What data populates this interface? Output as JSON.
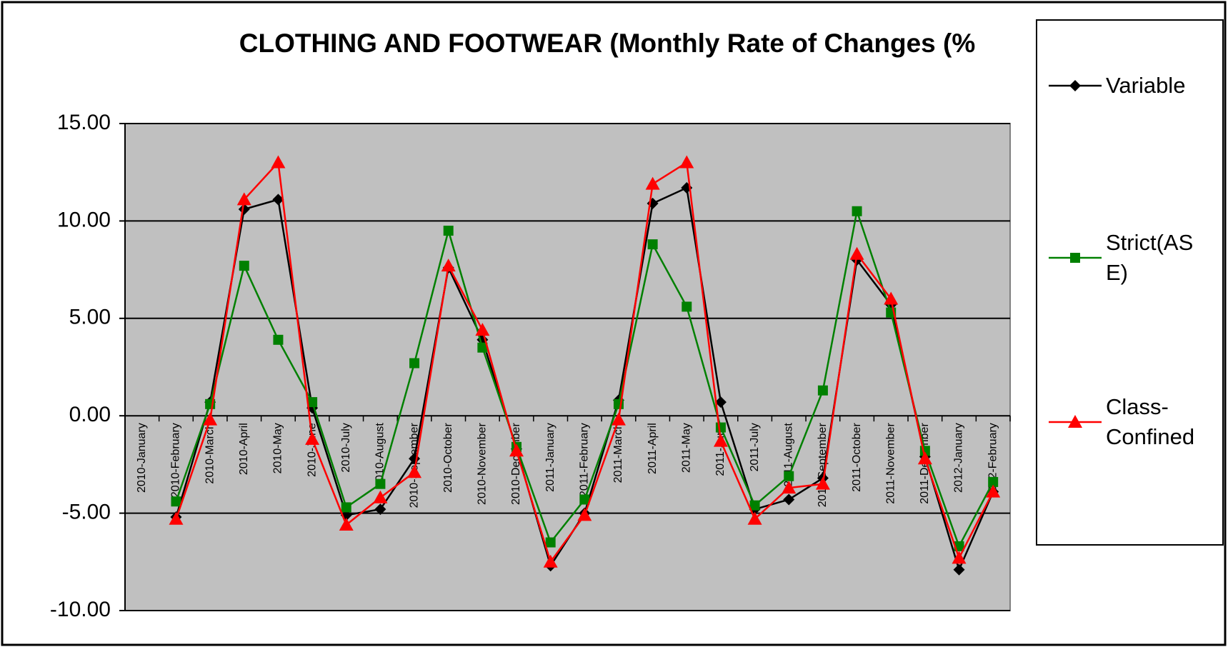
{
  "chart_data": {
    "type": "line",
    "title": "CLOTHING AND FOOTWEAR (Monthly Rate of Changes (%",
    "categories": [
      "2010-January",
      "2010-February",
      "2010-March",
      "2010-April",
      "2010-May",
      "2010-June",
      "2010-July",
      "2010-August",
      "2010-September",
      "2010-October",
      "2010-November",
      "2010-December",
      "2011-January",
      "2011-February",
      "2011-March",
      "2011-April",
      "2011-May",
      "2011-June",
      "2011-July",
      "2011-August",
      "2011-September",
      "2011-October",
      "2011-November",
      "2011-December",
      "2012-January",
      "2012-February"
    ],
    "series": [
      {
        "name": "Variable",
        "color": "#000000",
        "marker": "diamond",
        "values": [
          null,
          -5.2,
          0.7,
          10.6,
          11.1,
          0.4,
          -5.1,
          -4.8,
          -2.2,
          7.6,
          3.9,
          -1.7,
          -7.7,
          -5.0,
          0.8,
          10.9,
          11.7,
          0.7,
          -4.8,
          -4.3,
          -3.2,
          8.0,
          5.7,
          -2.1,
          -7.9,
          -3.9
        ]
      },
      {
        "name": "Strict(ASE)",
        "color": "#008000",
        "marker": "square",
        "values": [
          null,
          -4.4,
          0.6,
          7.7,
          3.9,
          0.7,
          -4.7,
          -3.5,
          2.7,
          9.5,
          3.5,
          -1.6,
          -6.5,
          -4.3,
          0.6,
          8.8,
          5.6,
          -0.6,
          -4.6,
          -3.1,
          1.3,
          10.5,
          5.3,
          -1.8,
          -6.7,
          -3.4
        ]
      },
      {
        "name": "Class-Confined",
        "color": "#ff0000",
        "marker": "triangle",
        "values": [
          null,
          -5.3,
          -0.2,
          11.1,
          13.0,
          -1.2,
          -5.6,
          -4.2,
          -2.9,
          7.7,
          4.4,
          -1.8,
          -7.5,
          -5.1,
          -0.2,
          11.9,
          13.0,
          -1.3,
          -5.3,
          -3.7,
          -3.5,
          8.3,
          6.0,
          -2.2,
          -7.3,
          -3.9
        ]
      }
    ],
    "ylim": [
      -10,
      15
    ],
    "yticks": [
      {
        "value": -10,
        "label": "-10.00"
      },
      {
        "value": -5,
        "label": "-5.00"
      },
      {
        "value": 0,
        "label": "0.00"
      },
      {
        "value": 5,
        "label": "5.00"
      },
      {
        "value": 10,
        "label": "10.00"
      },
      {
        "value": 15,
        "label": "15.00"
      }
    ],
    "grid": true,
    "legend": "right"
  }
}
